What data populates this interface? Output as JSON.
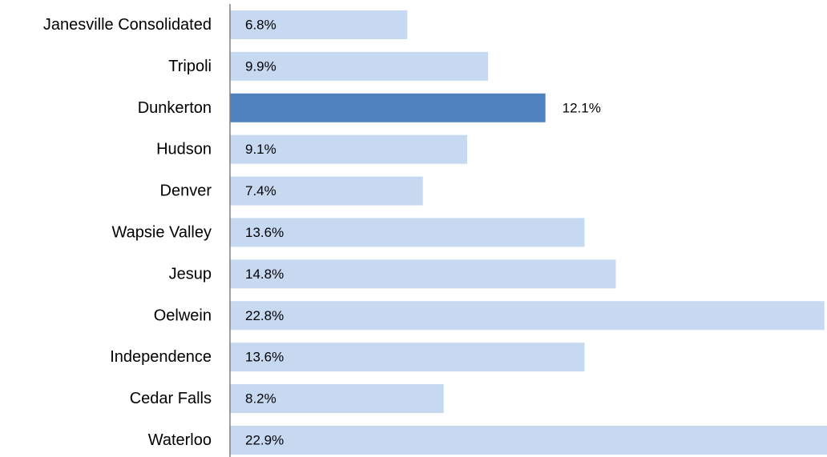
{
  "chart_data": {
    "type": "bar",
    "orientation": "horizontal",
    "categories": [
      "Janesville Consolidated",
      "Tripoli",
      "Dunkerton",
      "Hudson",
      "Denver",
      "Wapsie Valley",
      "Jesup",
      "Oelwein",
      "Independence",
      "Cedar Falls",
      "Waterloo"
    ],
    "values": [
      6.8,
      9.9,
      12.1,
      9.1,
      7.4,
      13.6,
      14.8,
      22.8,
      13.6,
      8.2,
      22.9
    ],
    "value_labels": [
      "6.8%",
      "9.9%",
      "12.1%",
      "9.1%",
      "7.4%",
      "13.6%",
      "14.8%",
      "22.8%",
      "13.6%",
      "8.2%",
      "22.9%"
    ],
    "highlight_category": "Dunkerton",
    "colors": {
      "bar": "#c6d9f1",
      "highlight": "#4f81bd",
      "axis": "#808080",
      "text": "#000000"
    },
    "title": "",
    "xlabel": "",
    "ylabel": "",
    "xlim": [
      0,
      22.9
    ],
    "grid": false,
    "legend": "none"
  }
}
